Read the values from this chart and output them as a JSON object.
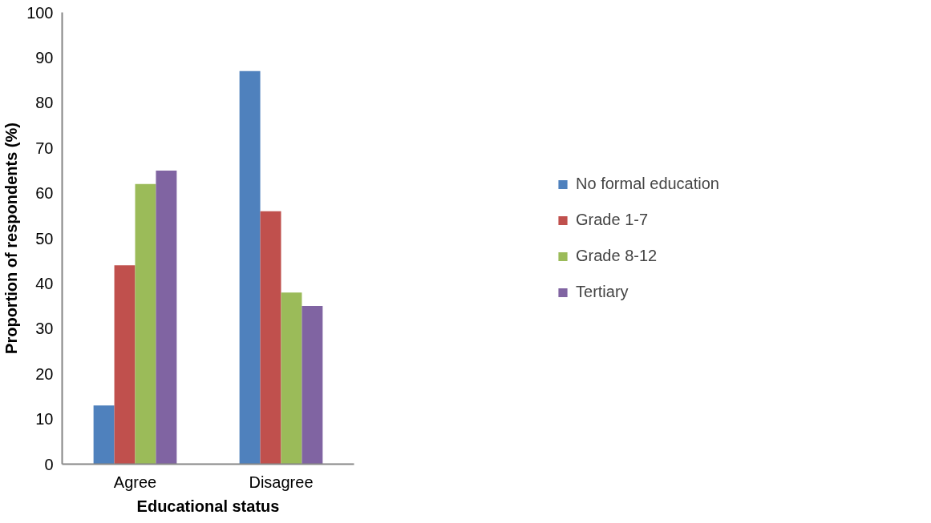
{
  "chart_data": {
    "type": "bar",
    "xlabel": "Educational status",
    "ylabel": "Proportion of respondents (%)",
    "categories": [
      "Agree",
      "Disagree"
    ],
    "series": [
      {
        "name": "No formal education",
        "color": "#4f81bd",
        "values": [
          13,
          87
        ]
      },
      {
        "name": "Grade 1-7",
        "color": "#c0504d",
        "values": [
          44,
          56
        ]
      },
      {
        "name": "Grade 8-12",
        "color": "#9bbb59",
        "values": [
          62,
          38
        ]
      },
      {
        "name": "Tertiary",
        "color": "#8064a2",
        "values": [
          65,
          35
        ]
      }
    ],
    "ylim": [
      0,
      100
    ],
    "yticks": [
      0,
      10,
      20,
      30,
      40,
      50,
      60,
      70,
      80,
      90,
      100
    ],
    "grid": false,
    "legend": "right"
  }
}
